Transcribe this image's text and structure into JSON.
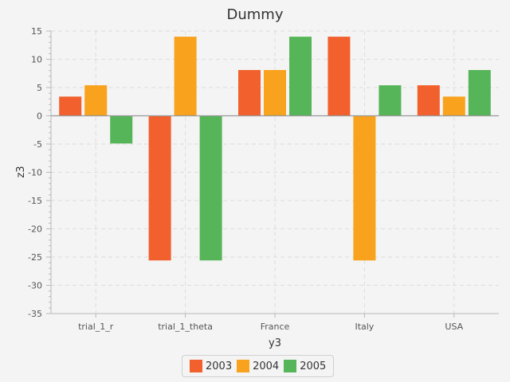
{
  "chart_data": {
    "type": "bar",
    "title": "Dummy",
    "xlabel": "y3",
    "ylabel": "z3",
    "categories": [
      "trial_1_r",
      "trial_1_theta",
      "France",
      "Italy",
      "USA"
    ],
    "series": [
      {
        "name": "2003",
        "color": "#f2602d",
        "values": [
          3.4,
          -25.6,
          8.1,
          14.0,
          5.4
        ]
      },
      {
        "name": "2004",
        "color": "#f8a21d",
        "values": [
          5.4,
          14.0,
          8.1,
          -25.6,
          3.4
        ]
      },
      {
        "name": "2005",
        "color": "#56b558",
        "values": [
          -4.9,
          -25.6,
          14.0,
          5.4,
          8.1
        ]
      }
    ],
    "ylim": [
      -35,
      15
    ],
    "yticks": [
      15,
      10,
      5,
      0,
      -5,
      -10,
      -15,
      -20,
      -25,
      -30,
      -35
    ],
    "grid": true,
    "legend_position": "bottom"
  }
}
